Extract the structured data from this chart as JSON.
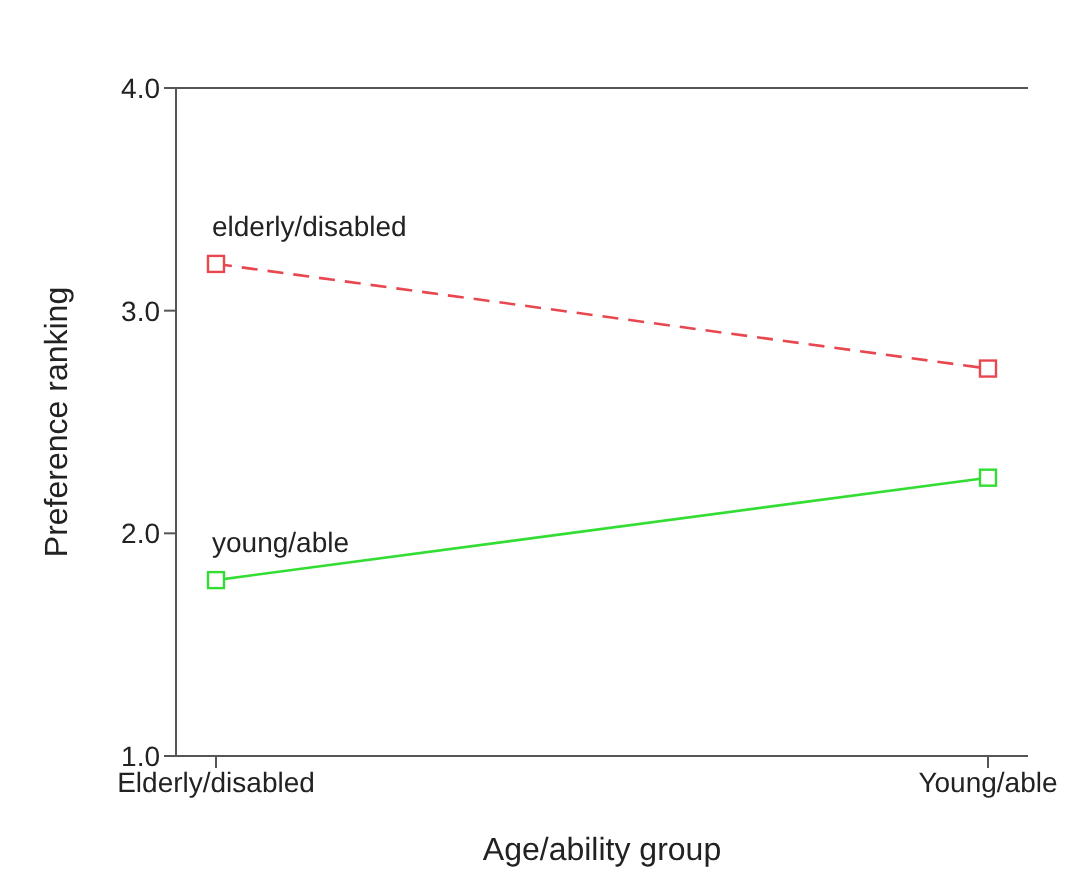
{
  "chart_data": {
    "type": "line",
    "xlabel": "Age/ability group",
    "ylabel": "Preference ranking",
    "categories": [
      "Elderly/disabled",
      "Young/able"
    ],
    "series": [
      {
        "name": "elderly/disabled",
        "color": "#e8474f",
        "values": [
          3.21,
          2.74
        ],
        "line_style": "dashed"
      },
      {
        "name": "young/able",
        "color": "#33dd33",
        "values": [
          1.79,
          2.25
        ],
        "line_style": "solid"
      }
    ],
    "ylim": [
      1,
      4
    ],
    "yticks": [
      {
        "value": 1,
        "label": "1.0"
      },
      {
        "value": 2,
        "label": "2.0"
      },
      {
        "value": 3,
        "label": "3.0"
      },
      {
        "value": 4,
        "label": "4.0"
      }
    ],
    "marker": "square",
    "grid": false,
    "legend": false
  }
}
